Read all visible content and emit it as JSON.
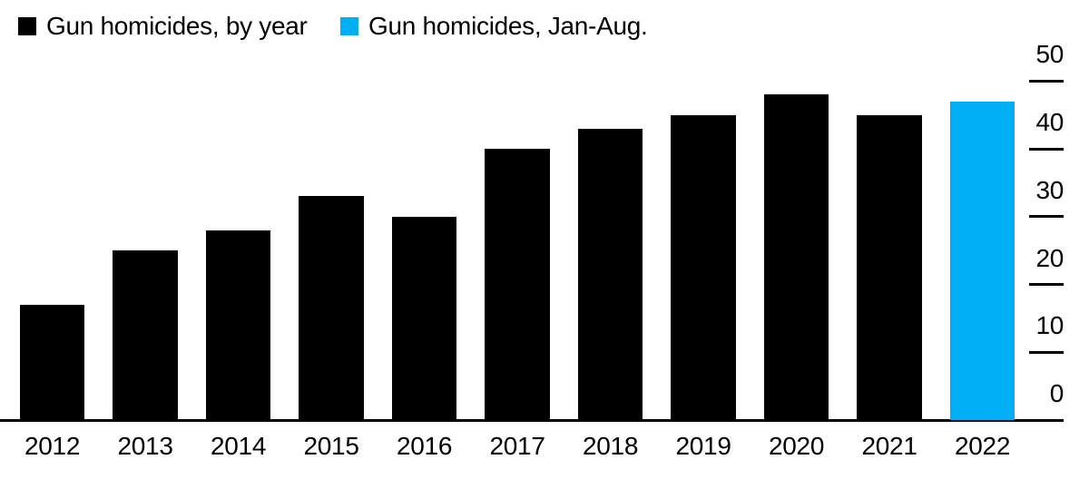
{
  "legend": {
    "items": [
      {
        "label": "Gun homicides, by year",
        "color": "#000000",
        "swatch_icon": "black-square-swatch-icon"
      },
      {
        "label": "Gun homicides, Jan-Aug.",
        "color": "#00aef3",
        "swatch_icon": "blue-square-swatch-icon"
      }
    ]
  },
  "colors": {
    "full_year_bar": "#000000",
    "jan_aug_bar": "#00aef3",
    "axis": "#000000",
    "background": "#ffffff",
    "text": "#000000"
  },
  "chart_data": {
    "type": "bar",
    "title": "",
    "xlabel": "",
    "ylabel": "",
    "categories": [
      "2012",
      "2013",
      "2014",
      "2015",
      "2016",
      "2017",
      "2018",
      "2019",
      "2020",
      "2021",
      "2022"
    ],
    "series": [
      {
        "name": "Gun homicides, by year",
        "color": "#000000",
        "values": [
          17,
          25,
          28,
          33,
          30,
          40,
          43,
          45,
          48,
          45,
          null
        ]
      },
      {
        "name": "Gun homicides, Jan-Aug.",
        "color": "#00aef3",
        "values": [
          null,
          null,
          null,
          null,
          null,
          null,
          null,
          null,
          null,
          null,
          47
        ]
      }
    ],
    "yticks": [
      0,
      10,
      20,
      30,
      40,
      50
    ],
    "ylim": [
      0,
      50
    ],
    "grid": false,
    "y_axis_side": "right",
    "legend_position": "top-left"
  }
}
